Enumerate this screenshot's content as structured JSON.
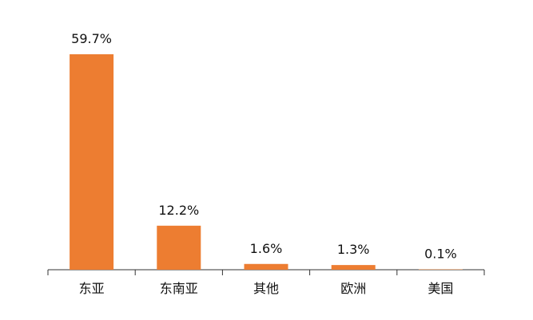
{
  "chart_data": {
    "type": "bar",
    "categories": [
      "东亚",
      "东南亚",
      "其他",
      "欧洲",
      "美国"
    ],
    "values": [
      59.7,
      12.2,
      1.6,
      1.3,
      0.1
    ],
    "value_labels": [
      "59.7%",
      "12.2%",
      "1.6%",
      "1.3%",
      "0.1%"
    ],
    "color": "#ed7d31"
  }
}
